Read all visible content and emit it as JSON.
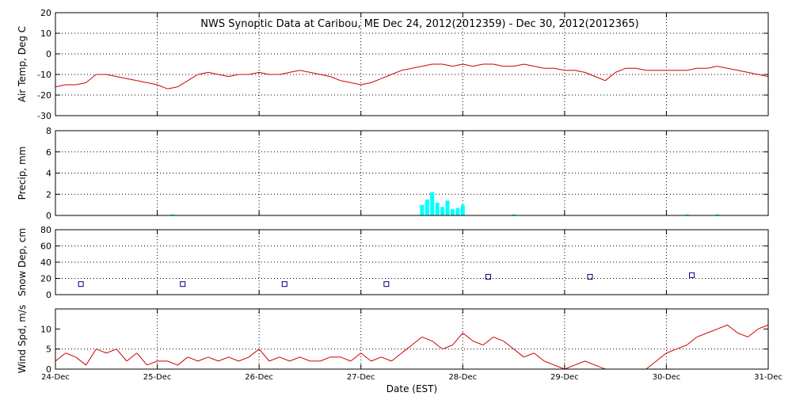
{
  "title": "NWS Synoptic Data at Caribou, ME    Dec 24, 2012(2012359) - Dec 30, 2012(2012365)",
  "x_axis": {
    "label": "Date (EST)",
    "ticks": [
      "24-Dec",
      "25-Dec",
      "26-Dec",
      "27-Dec",
      "28-Dec",
      "29-Dec",
      "30-Dec",
      "31-Dec"
    ]
  },
  "colors": {
    "temp": "#cc0000",
    "precip": "#00ffff",
    "snow": "#000080",
    "wind": "#cc0000",
    "axis": "#000000"
  },
  "chart_data": [
    {
      "type": "line",
      "ylabel": "Air Temp, Deg C",
      "ylim": [
        -30,
        20
      ],
      "yticks": [
        "-30",
        "-20",
        "-10",
        "0",
        "10",
        "20"
      ],
      "grid": true,
      "series": [
        {
          "color": "#cc0000",
          "x_days": [
            0,
            0.1,
            0.2,
            0.3,
            0.4,
            0.5,
            0.6,
            0.7,
            0.8,
            0.9,
            1,
            1.1,
            1.2,
            1.3,
            1.4,
            1.5,
            1.6,
            1.7,
            1.8,
            1.9,
            2,
            2.1,
            2.2,
            2.3,
            2.4,
            2.5,
            2.6,
            2.7,
            2.8,
            2.9,
            3,
            3.1,
            3.2,
            3.3,
            3.4,
            3.5,
            3.6,
            3.7,
            3.8,
            3.9,
            4,
            4.1,
            4.2,
            4.3,
            4.4,
            4.5,
            4.6,
            4.7,
            4.8,
            4.9,
            5,
            5.1,
            5.2,
            5.3,
            5.4,
            5.5,
            5.6,
            5.7,
            5.8,
            5.9,
            6,
            6.1,
            6.2,
            6.3,
            6.4,
            6.5,
            6.6,
            6.7,
            6.8,
            6.9,
            7
          ],
          "values": [
            -16,
            -15,
            -15,
            -14,
            -10,
            -10,
            -11,
            -12,
            -13,
            -14,
            -15,
            -17,
            -16,
            -13,
            -10,
            -9,
            -10,
            -11,
            -10,
            -10,
            -9,
            -10,
            -10,
            -9,
            -8,
            -9,
            -10,
            -11,
            -13,
            -14,
            -15,
            -14,
            -12,
            -10,
            -8,
            -7,
            -6,
            -5,
            -5,
            -6,
            -5,
            -6,
            -5,
            -5,
            -6,
            -6,
            -5,
            -6,
            -7,
            -7,
            -8,
            -8,
            -9,
            -11,
            -13,
            -9,
            -7,
            -7,
            -8,
            -8,
            -8,
            -8,
            -8,
            -7,
            -7,
            -6,
            -7,
            -8,
            -9,
            -10,
            -11
          ]
        }
      ]
    },
    {
      "type": "bar",
      "ylabel": "Precip, mm",
      "ylim": [
        0,
        8
      ],
      "yticks": [
        "0",
        "2",
        "4",
        "6",
        "8"
      ],
      "grid": true,
      "series": [
        {
          "color": "#00ffff",
          "x_days": [
            1.15,
            3.6,
            3.65,
            3.7,
            3.75,
            3.8,
            3.85,
            3.9,
            3.95,
            4.0,
            4.5,
            6.2,
            6.5
          ],
          "values": [
            0.1,
            1,
            1.5,
            2.2,
            1.2,
            0.8,
            1.4,
            0.6,
            0.7,
            1.0,
            0.1,
            0.1,
            0.1
          ]
        }
      ]
    },
    {
      "type": "scatter",
      "ylabel": "Snow Dep, cm",
      "ylim": [
        0,
        80
      ],
      "yticks": [
        "0",
        "20",
        "40",
        "60",
        "80"
      ],
      "grid": true,
      "series": [
        {
          "color": "#000080",
          "x_days": [
            0.25,
            1.25,
            2.25,
            3.25,
            4.25,
            5.25,
            6.25
          ],
          "values": [
            13,
            13,
            13,
            13,
            22,
            22,
            24
          ]
        }
      ]
    },
    {
      "type": "line",
      "ylabel": "Wind Spd, m/s",
      "ylim": [
        0,
        15
      ],
      "yticks": [
        "0",
        "5",
        "10"
      ],
      "grid": true,
      "series": [
        {
          "color": "#cc0000",
          "x_days": [
            0,
            0.1,
            0.2,
            0.3,
            0.4,
            0.5,
            0.6,
            0.7,
            0.8,
            0.9,
            1,
            1.1,
            1.2,
            1.3,
            1.4,
            1.5,
            1.6,
            1.7,
            1.8,
            1.9,
            2,
            2.1,
            2.2,
            2.3,
            2.4,
            2.5,
            2.6,
            2.7,
            2.8,
            2.9,
            3,
            3.1,
            3.2,
            3.3,
            3.4,
            3.5,
            3.6,
            3.7,
            3.8,
            3.9,
            4,
            4.1,
            4.2,
            4.3,
            4.4,
            4.5,
            4.6,
            4.7,
            4.8,
            4.9,
            5,
            5.1,
            5.2,
            5.3,
            5.4,
            5.5,
            5.6,
            5.7,
            5.8,
            5.9,
            6,
            6.1,
            6.2,
            6.3,
            6.4,
            6.5,
            6.6,
            6.7,
            6.8,
            6.9,
            7
          ],
          "values": [
            2,
            4,
            3,
            1,
            5,
            4,
            5,
            2,
            4,
            1,
            2,
            2,
            1,
            3,
            2,
            3,
            2,
            3,
            2,
            3,
            5,
            2,
            3,
            2,
            3,
            2,
            2,
            3,
            3,
            2,
            4,
            2,
            3,
            2,
            4,
            6,
            8,
            7,
            5,
            6,
            9,
            7,
            6,
            8,
            7,
            5,
            3,
            4,
            2,
            1,
            0,
            1,
            2,
            1,
            0,
            0,
            0,
            0,
            0,
            2,
            4,
            5,
            6,
            8,
            9,
            10,
            11,
            9,
            8,
            10,
            11
          ]
        }
      ]
    }
  ]
}
